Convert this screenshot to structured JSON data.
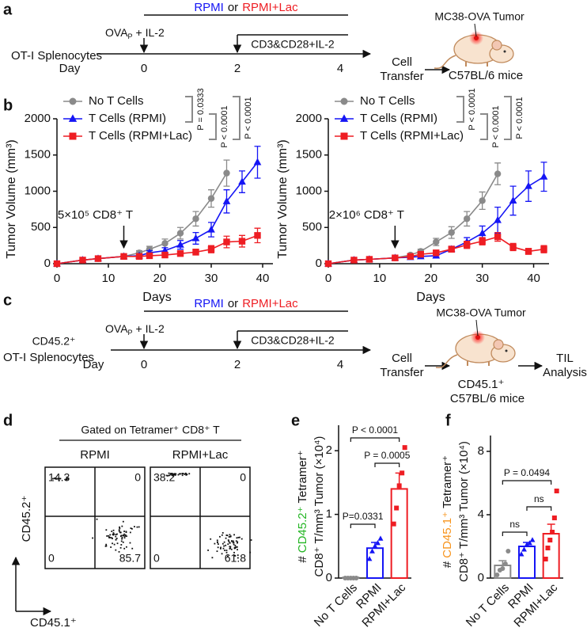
{
  "panel_labels": [
    "a",
    "b",
    "c",
    "d",
    "e",
    "f"
  ],
  "panel_a": {
    "conditions": {
      "first": "RPMI",
      "joiner": "or",
      "second": "RPMI+Lac",
      "first_color": "#1515f5",
      "second_color": "#ee1d23"
    },
    "ova": "OVA",
    "ova_sub": "P",
    "ova_rest": "+ IL-2",
    "restim": "CD3&CD28+IL-2",
    "cells": "OT-I Splenocytes",
    "day": "Day",
    "days": [
      0,
      2,
      4
    ],
    "transfer": [
      "Cell",
      "Transfer"
    ],
    "tumor": "MC38-OVA Tumor",
    "mice": "C57BL/6 mice"
  },
  "panel_c": {
    "conditions": {
      "first": "RPMI",
      "joiner": "or",
      "second": "RPMI+Lac",
      "first_color": "#1515f5",
      "second_color": "#ee1d23"
    },
    "ova": "OVA",
    "ova_sub": "P",
    "ova_rest": "+ IL-2",
    "restim": "CD3&CD28+IL-2",
    "donor": "CD45.2⁺",
    "donor_color": "#23b523",
    "cells": "OT-I Splenocytes",
    "day": "Day",
    "days": [
      0,
      2,
      4
    ],
    "transfer": [
      "Cell",
      "Transfer"
    ],
    "tumor": "MC38-OVA Tumor",
    "host": "CD45.1⁺",
    "host_color": "#f7941d",
    "mice": "C57BL/6 mice",
    "analysis": [
      "TIL",
      "Analysis"
    ]
  },
  "panel_d": {
    "title": "Gated on Tetramer⁺ CD8⁺ T",
    "y_label": "CD45.2⁺",
    "y_label_color": "#23b523",
    "x_label": "CD45.1⁺",
    "x_label_color": "#f7941d",
    "plots": [
      {
        "name": "RPMI",
        "color": "#1515f5",
        "quadrants": {
          "upper_left": 14.3,
          "upper_right": 0,
          "lower_left": 0,
          "lower_right": 85.7
        }
      },
      {
        "name": "RPMI+Lac",
        "color": "#ee1d23",
        "quadrants": {
          "upper_left": 38.2,
          "upper_right": 0,
          "lower_left": 0,
          "lower_right": 61.8
        }
      }
    ],
    "upper_left_color": "#23b523",
    "lower_right_color": "#f7941d"
  },
  "chart_data": [
    {
      "type": "line",
      "xlabel": "Days",
      "ylabel": "Tumor Volume (mm³)",
      "x": [
        0,
        5,
        8,
        13,
        16,
        18,
        21,
        24,
        27,
        30,
        33,
        36,
        39
      ],
      "xlim": [
        0,
        42
      ],
      "xticks": [
        0,
        10,
        20,
        30,
        40
      ],
      "ylim": [
        0,
        2000
      ],
      "yticks": [
        0,
        500,
        1000,
        1500,
        2000
      ],
      "annotation": {
        "label": "5×10⁵ CD8⁺ T",
        "x": 13
      },
      "series": [
        {
          "name": "No T Cells",
          "color": "#8a8a8a",
          "marker": "circle",
          "values": [
            0,
            50,
            70,
            100,
            150,
            200,
            280,
            420,
            620,
            900,
            1250,
            null,
            null
          ],
          "errors": [
            0,
            10,
            15,
            20,
            30,
            40,
            60,
            80,
            100,
            120,
            180,
            null,
            null
          ]
        },
        {
          "name": "T Cells (RPMI)",
          "color": "#1515f5",
          "marker": "triangle",
          "values": [
            0,
            50,
            70,
            100,
            110,
            150,
            180,
            260,
            350,
            470,
            860,
            1130,
            1400
          ],
          "errors": [
            0,
            10,
            10,
            20,
            20,
            30,
            40,
            60,
            80,
            100,
            160,
            150,
            220
          ]
        },
        {
          "name": "T Cells (RPMI+Lac)",
          "color": "#ee1d23",
          "marker": "square",
          "values": [
            0,
            50,
            70,
            100,
            100,
            110,
            120,
            140,
            160,
            200,
            300,
            310,
            390
          ],
          "errors": [
            0,
            10,
            10,
            20,
            20,
            20,
            20,
            30,
            40,
            50,
            80,
            80,
            100
          ]
        }
      ],
      "pvalues": [
        "P = 0.0333",
        "P < 0.0001",
        "P < 0.0001"
      ]
    },
    {
      "type": "line",
      "xlabel": "Days",
      "ylabel": "Tumor Volume (mm³)",
      "x": [
        0,
        5,
        8,
        13,
        16,
        18,
        21,
        24,
        27,
        30,
        33,
        36,
        39,
        42
      ],
      "xlim": [
        0,
        43
      ],
      "xticks": [
        0,
        10,
        20,
        30,
        40
      ],
      "ylim": [
        0,
        2000
      ],
      "yticks": [
        0,
        500,
        1000,
        1500,
        2000
      ],
      "annotation": {
        "label": "2×10⁶ CD8⁺ T",
        "x": 13
      },
      "series": [
        {
          "name": "No T Cells",
          "color": "#8a8a8a",
          "marker": "circle",
          "values": [
            0,
            50,
            60,
            80,
            120,
            170,
            300,
            430,
            620,
            870,
            1240,
            null,
            null,
            null
          ],
          "errors": [
            0,
            10,
            10,
            15,
            20,
            30,
            50,
            80,
            100,
            120,
            150,
            null,
            null,
            null
          ]
        },
        {
          "name": "T Cells (RPMI)",
          "color": "#1515f5",
          "marker": "triangle",
          "values": [
            0,
            50,
            60,
            80,
            90,
            100,
            110,
            200,
            300,
            420,
            600,
            870,
            1070,
            1200
          ],
          "errors": [
            0,
            10,
            10,
            15,
            15,
            20,
            20,
            40,
            60,
            100,
            180,
            200,
            210,
            200
          ]
        },
        {
          "name": "T Cells (RPMI+Lac)",
          "color": "#ee1d23",
          "marker": "square",
          "values": [
            0,
            50,
            60,
            80,
            100,
            130,
            150,
            200,
            260,
            310,
            370,
            230,
            170,
            200
          ],
          "errors": [
            0,
            10,
            10,
            15,
            20,
            30,
            30,
            40,
            50,
            50,
            60,
            50,
            40,
            50
          ]
        }
      ],
      "pvalues": [
        "P < 0.0001",
        "P < 0.0001",
        "P < 0.0001"
      ]
    },
    {
      "type": "bar",
      "ylabel": {
        "prefix": "#",
        "marker": "CD45.2⁺",
        "suffix": "Tetramer⁺",
        "marker_color": "#23b523",
        "second_line": "CD8⁺ T/mm³ Tumor (×10⁴)"
      },
      "categories": [
        "No T Cells",
        "RPMI",
        "RPMI+Lac"
      ],
      "colors": [
        "#8a8a8a",
        "#1515f5",
        "#ee1d23"
      ],
      "markers": [
        "circle",
        "triangle",
        "square"
      ],
      "values": [
        0.01,
        0.47,
        1.4
      ],
      "errors": [
        0.005,
        0.09,
        0.25
      ],
      "points": [
        [
          0,
          0,
          0,
          0,
          0
        ],
        [
          0.3,
          0.42,
          0.5,
          0.55,
          0.62
        ],
        [
          0.85,
          1.1,
          1.45,
          1.65,
          2.05
        ]
      ],
      "ylim": [
        0,
        2.4
      ],
      "yticks": [
        0,
        1,
        2
      ],
      "pvalues": [
        "P < 0.0001",
        "P = 0.0005",
        "P=0.0331"
      ]
    },
    {
      "type": "bar",
      "ylabel": {
        "prefix": "#",
        "marker": "CD45.1⁺",
        "suffix": "Tetramer⁺",
        "marker_color": "#f7941d",
        "second_line": "CD8⁺ T/mm³ Tumor (×10⁴)"
      },
      "categories": [
        "No T Cells",
        "RPMI",
        "RPMI+Lac"
      ],
      "colors": [
        "#8a8a8a",
        "#1515f5",
        "#ee1d23"
      ],
      "markers": [
        "circle",
        "triangle",
        "square"
      ],
      "values": [
        0.8,
        2.0,
        2.8
      ],
      "errors": [
        0.3,
        0.25,
        0.6
      ],
      "points": [
        [
          0.2,
          0.5,
          0.6,
          0.9,
          1.7
        ],
        [
          1.5,
          1.8,
          2.1,
          2.2,
          2.4
        ],
        [
          1.2,
          1.9,
          2.4,
          2.9,
          3.8,
          5.5
        ]
      ],
      "ylim": [
        0,
        9
      ],
      "yticks": [
        0,
        4,
        8
      ],
      "pvalues": [
        "P = 0.0494",
        "ns",
        "ns"
      ]
    }
  ]
}
